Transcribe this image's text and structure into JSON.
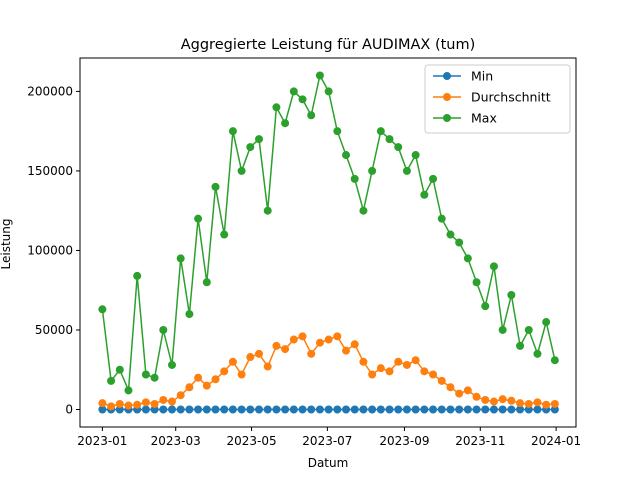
{
  "chart_data": {
    "type": "line",
    "title": "Aggregierte Leistung für AUDIMAX (tum)",
    "xlabel": "Datum",
    "ylabel": "Leistung",
    "xlim": [
      "2022-12-14",
      "2024-01-17"
    ],
    "ylim": [
      -11000,
      221000
    ],
    "x_ticks": [
      {
        "date": "2023-01-01",
        "label": "2023-01"
      },
      {
        "date": "2023-03-01",
        "label": "2023-03"
      },
      {
        "date": "2023-05-01",
        "label": "2023-05"
      },
      {
        "date": "2023-07-01",
        "label": "2023-07"
      },
      {
        "date": "2023-09-01",
        "label": "2023-09"
      },
      {
        "date": "2023-11-01",
        "label": "2023-11"
      },
      {
        "date": "2024-01-01",
        "label": "2024-01"
      }
    ],
    "y_ticks": [
      {
        "value": 0,
        "label": "0"
      },
      {
        "value": 50000,
        "label": "50000"
      },
      {
        "value": 100000,
        "label": "100000"
      },
      {
        "value": 150000,
        "label": "150000"
      },
      {
        "value": 200000,
        "label": "200000"
      }
    ],
    "grid": false,
    "legend_position": "top-right",
    "x": [
      "2023-01-01",
      "2023-01-08",
      "2023-01-15",
      "2023-01-22",
      "2023-01-29",
      "2023-02-05",
      "2023-02-12",
      "2023-02-19",
      "2023-02-26",
      "2023-03-05",
      "2023-03-12",
      "2023-03-19",
      "2023-03-26",
      "2023-04-02",
      "2023-04-09",
      "2023-04-16",
      "2023-04-23",
      "2023-04-30",
      "2023-05-07",
      "2023-05-14",
      "2023-05-21",
      "2023-05-28",
      "2023-06-04",
      "2023-06-11",
      "2023-06-18",
      "2023-06-25",
      "2023-07-02",
      "2023-07-09",
      "2023-07-16",
      "2023-07-23",
      "2023-07-30",
      "2023-08-06",
      "2023-08-13",
      "2023-08-20",
      "2023-08-27",
      "2023-09-03",
      "2023-09-10",
      "2023-09-17",
      "2023-09-24",
      "2023-10-01",
      "2023-10-08",
      "2023-10-15",
      "2023-10-22",
      "2023-10-29",
      "2023-11-05",
      "2023-11-12",
      "2023-11-19",
      "2023-11-26",
      "2023-12-03",
      "2023-12-10",
      "2023-12-17",
      "2023-12-24",
      "2023-12-31"
    ],
    "series": [
      {
        "name": "Min",
        "color": "#1f77b4",
        "values": [
          0,
          0,
          0,
          0,
          0,
          0,
          0,
          0,
          0,
          0,
          0,
          0,
          0,
          0,
          0,
          0,
          0,
          0,
          0,
          0,
          0,
          0,
          0,
          0,
          0,
          0,
          0,
          0,
          0,
          0,
          0,
          0,
          0,
          0,
          0,
          0,
          0,
          0,
          0,
          0,
          0,
          0,
          0,
          0,
          0,
          0,
          0,
          0,
          0,
          0,
          0,
          0,
          0
        ]
      },
      {
        "name": "Durchschnitt",
        "color": "#ff7f0e",
        "values": [
          4000,
          2000,
          3500,
          2500,
          3000,
          4500,
          3500,
          6000,
          5000,
          9000,
          14000,
          20000,
          15000,
          19000,
          24000,
          30000,
          22000,
          33000,
          35000,
          27000,
          40000,
          38000,
          44000,
          46000,
          35000,
          42000,
          44000,
          46000,
          37000,
          41000,
          30000,
          22000,
          26000,
          24000,
          30000,
          28000,
          31000,
          24000,
          22000,
          18000,
          14000,
          10000,
          12000,
          8000,
          6000,
          5000,
          6500,
          5500,
          4000,
          3500,
          4500,
          3000,
          3500
        ]
      },
      {
        "name": "Max",
        "color": "#2ca02c",
        "values": [
          63000,
          18000,
          25000,
          12000,
          84000,
          22000,
          20000,
          50000,
          28000,
          95000,
          60000,
          120000,
          80000,
          140000,
          110000,
          175000,
          150000,
          165000,
          170000,
          125000,
          190000,
          180000,
          200000,
          195000,
          185000,
          210000,
          200000,
          175000,
          160000,
          145000,
          125000,
          150000,
          175000,
          170000,
          165000,
          150000,
          160000,
          135000,
          145000,
          120000,
          110000,
          105000,
          95000,
          80000,
          65000,
          90000,
          50000,
          72000,
          40000,
          50000,
          35000,
          55000,
          31000
        ]
      }
    ]
  }
}
